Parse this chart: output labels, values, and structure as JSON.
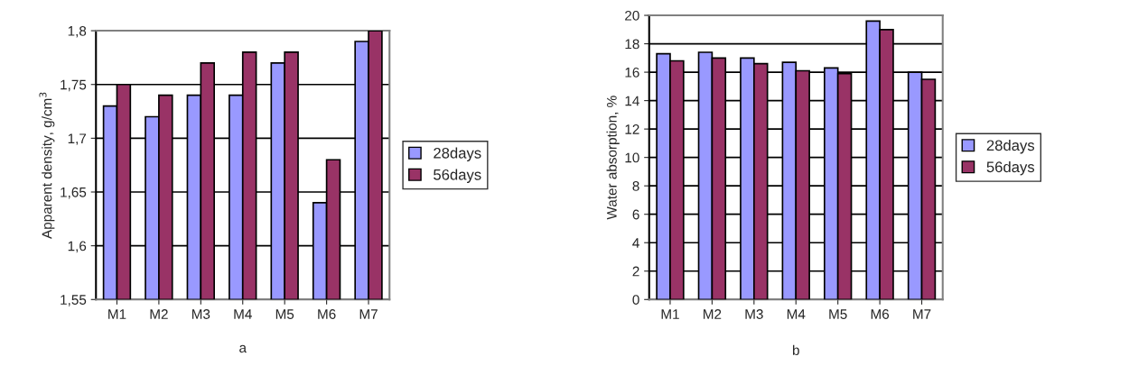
{
  "chart_data": [
    {
      "type": "bar",
      "ylabel": "Apparent density, g/cm$^{3}$",
      "categories": [
        "M1",
        "M2",
        "M3",
        "M4",
        "M5",
        "M6",
        "M7"
      ],
      "series": [
        {
          "name": "28days",
          "color": "#9999ff",
          "values": [
            1.73,
            1.72,
            1.74,
            1.74,
            1.77,
            1.64,
            1.79
          ]
        },
        {
          "name": "56days",
          "color": "#993366",
          "values": [
            1.75,
            1.74,
            1.77,
            1.78,
            1.78,
            1.68,
            1.8
          ]
        }
      ],
      "ylim": [
        1.55,
        1.8
      ],
      "yticks": [
        {
          "value": 1.55,
          "label": "1,55"
        },
        {
          "value": 1.6,
          "label": "1,6"
        },
        {
          "value": 1.65,
          "label": "1,65"
        },
        {
          "value": 1.7,
          "label": "1,7"
        },
        {
          "value": 1.75,
          "label": "1,75"
        },
        {
          "value": 1.8,
          "label": "1,8"
        }
      ],
      "grid": "y",
      "legend": "right",
      "annotations": [
        "a"
      ]
    },
    {
      "type": "bar",
      "ylabel": "Water absorption, %",
      "categories": [
        "M1",
        "M2",
        "M3",
        "M4",
        "M5",
        "M6",
        "M7"
      ],
      "series": [
        {
          "name": "28days",
          "color": "#9999ff",
          "values": [
            17.3,
            17.4,
            17.0,
            16.7,
            16.3,
            19.6,
            16.0
          ]
        },
        {
          "name": "56days",
          "color": "#993366",
          "values": [
            16.8,
            17.0,
            16.6,
            16.1,
            15.9,
            19.0,
            15.5
          ]
        }
      ],
      "ylim": [
        0,
        20
      ],
      "yticks": [
        0,
        2,
        4,
        6,
        8,
        10,
        12,
        14,
        16,
        18,
        20
      ],
      "grid": "y",
      "legend": "right",
      "annotations": [
        "b"
      ]
    }
  ]
}
